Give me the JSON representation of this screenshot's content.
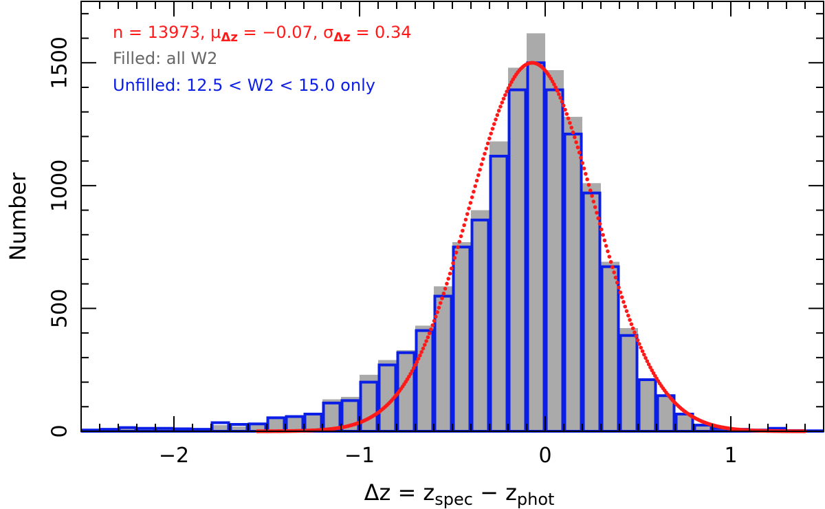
{
  "chart_data": {
    "type": "bar",
    "xlabel": {
      "main": "Δz = z",
      "sub1": "spec",
      "mid": " − z",
      "sub2": "phot"
    },
    "ylabel": "Number",
    "xlim": [
      -2.5,
      1.5
    ],
    "ylim": [
      0,
      1750
    ],
    "x_ticks": [
      -2,
      -1,
      0,
      1
    ],
    "x_tick_labels": [
      "−2",
      "−1",
      "0",
      "1"
    ],
    "y_ticks": [
      0,
      500,
      1000,
      1500
    ],
    "y_tick_labels": [
      "0",
      "500",
      "1000",
      "1500"
    ],
    "bin_width": 0.1,
    "bin_left_edges": [
      -2.5,
      -2.4,
      -2.3,
      -2.2,
      -2.1,
      -2.0,
      -1.9,
      -1.8,
      -1.7,
      -1.6,
      -1.5,
      -1.4,
      -1.3,
      -1.2,
      -1.1,
      -1.0,
      -0.9,
      -0.8,
      -0.7,
      -0.6,
      -0.5,
      -0.4,
      -0.3,
      -0.2,
      -0.1,
      0.0,
      0.1,
      0.2,
      0.3,
      0.4,
      0.5,
      0.6,
      0.7,
      0.8,
      0.9,
      1.0,
      1.1,
      1.2,
      1.3,
      1.4
    ],
    "series": [
      {
        "label": "Filled: all W2",
        "color": "#aaaaaa",
        "style": "filled",
        "values": [
          5,
          8,
          12,
          10,
          12,
          10,
          8,
          25,
          20,
          28,
          50,
          55,
          70,
          130,
          140,
          230,
          290,
          330,
          430,
          590,
          770,
          900,
          1180,
          1480,
          1620,
          1470,
          1280,
          1010,
          690,
          420,
          210,
          150,
          70,
          25,
          15,
          10,
          5,
          5,
          3,
          2
        ]
      },
      {
        "label": "Unfilled: 12.5 < W2 < 15.0 only",
        "color": "#0a1ee6",
        "style": "outline",
        "values": [
          5,
          8,
          15,
          12,
          12,
          10,
          8,
          35,
          28,
          30,
          55,
          60,
          70,
          115,
          125,
          200,
          270,
          320,
          410,
          550,
          750,
          860,
          1120,
          1390,
          1500,
          1390,
          1210,
          970,
          670,
          390,
          210,
          145,
          70,
          25,
          12,
          8,
          5,
          12,
          3,
          2
        ]
      }
    ],
    "fit": {
      "type": "gaussian",
      "color": "#ff1a1a",
      "mu": -0.07,
      "sigma": 0.34,
      "amplitude": 1500
    },
    "annotations": {
      "line1": {
        "p1": "n = 13973, μ",
        "s1": "Δz",
        "p2": " = −0.07, σ",
        "s2": "Δz",
        "p3": " = 0.34",
        "color": "#ff1a1a"
      },
      "line2": {
        "text": "Filled: all W2",
        "color": "#666666"
      },
      "line3": {
        "text": "Unfilled: 12.5 < W2 < 15.0 only",
        "color": "#0a1ee6"
      }
    },
    "grid": false
  }
}
